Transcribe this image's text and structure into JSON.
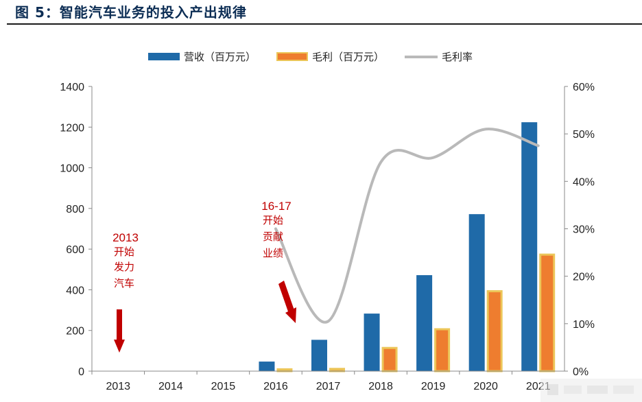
{
  "figure": {
    "title": "图 5：智能汽车业务的投入产出规律"
  },
  "chart_data": {
    "type": "bar",
    "categories": [
      "2013",
      "2014",
      "2015",
      "2016",
      "2017",
      "2018",
      "2019",
      "2020",
      "2021"
    ],
    "series": [
      {
        "name": "营收（百万元）",
        "type": "bar",
        "axis": "left",
        "color": "#1f6aa8",
        "values": [
          0,
          0,
          0,
          47,
          154,
          283,
          472,
          772,
          1224
        ]
      },
      {
        "name": "毛利（百万元）",
        "type": "bar",
        "axis": "left",
        "color": "#ee7d2f",
        "border_color": "#ecc659",
        "values": [
          0,
          0,
          0,
          14,
          16,
          119,
          211,
          398,
          578
        ]
      },
      {
        "name": "毛利率",
        "type": "line",
        "axis": "right",
        "color": "#b9b9b9",
        "smooth": true,
        "values": [
          null,
          null,
          null,
          0.3,
          0.105,
          0.44,
          0.45,
          0.51,
          0.475
        ]
      }
    ],
    "left_axis": {
      "min": 0,
      "max": 1400,
      "ticks": [
        0,
        200,
        400,
        600,
        800,
        1000,
        1200,
        1400
      ]
    },
    "right_axis": {
      "min": 0,
      "max": 0.6,
      "ticks": [
        "0%",
        "10%",
        "20%",
        "30%",
        "40%",
        "50%",
        "60%"
      ]
    },
    "legend_position": "top",
    "annotations": [
      {
        "id": "ann2013",
        "year_text": "2013",
        "lines": [
          "开始",
          "发力",
          "汽车"
        ]
      },
      {
        "id": "ann1617",
        "year_text": "16-17",
        "lines": [
          "开始",
          "贡献",
          "业绩"
        ]
      }
    ]
  }
}
